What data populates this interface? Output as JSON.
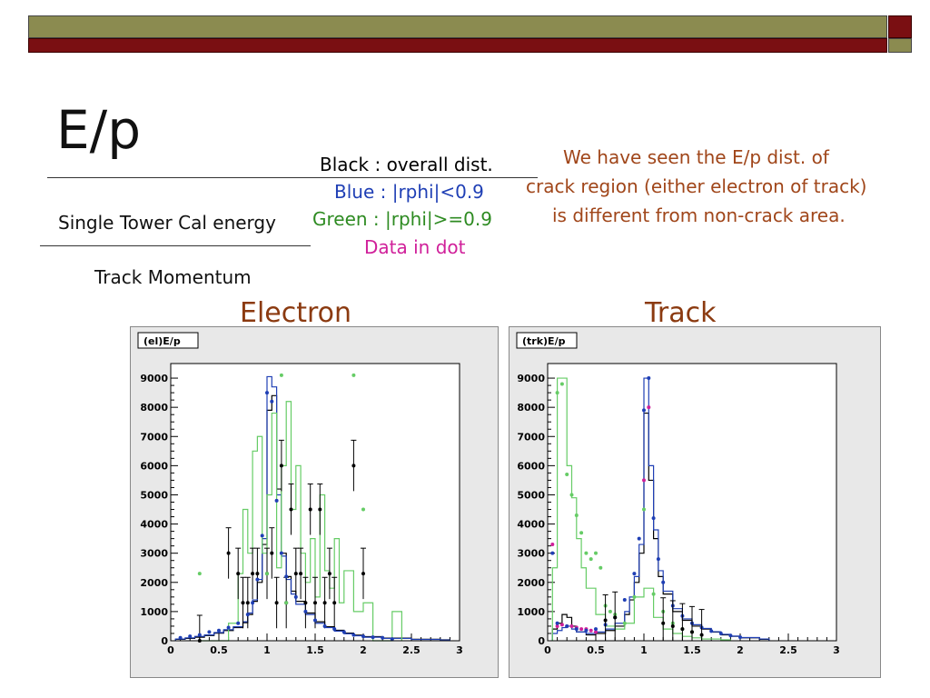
{
  "slide": {
    "title": "E/p",
    "numerator_label": "Single Tower Cal energy",
    "denominator_label": "Track Momentum",
    "legend": [
      {
        "text": "Black : overall dist.",
        "color": "#000000"
      },
      {
        "text": "Blue : |rphi|<0.9",
        "color": "#1f3fb5"
      },
      {
        "text": "Green : |rphi|>=0.9",
        "color": "#2e8b22"
      },
      {
        "text": "Data in dot",
        "color": "#d0209a"
      }
    ],
    "note_lines": [
      "We have seen the E/p dist. of",
      "crack region (either electron of track)",
      "is different from non-crack area."
    ],
    "note_color": "#a0461a",
    "colors": {
      "band_olive": "#8b8b50",
      "band_red": "#7a0f12",
      "plot_title": "#8b3a10"
    }
  },
  "chart_data": [
    {
      "type": "line",
      "heading": "Electron",
      "title": "(el)E/p",
      "xlim": [
        0,
        3
      ],
      "ylim": [
        0,
        9500
      ],
      "xticks": [
        0,
        0.5,
        1,
        1.5,
        2,
        2.5,
        3
      ],
      "yticks": [
        0,
        1000,
        2000,
        3000,
        4000,
        5000,
        6000,
        7000,
        8000,
        9000
      ],
      "series": [
        {
          "name": "Black : overall dist.",
          "style": "hist",
          "color": "#000000",
          "x": [
            0.05,
            0.15,
            0.25,
            0.35,
            0.45,
            0.55,
            0.65,
            0.75,
            0.8,
            0.85,
            0.9,
            0.95,
            1.0,
            1.05,
            1.1,
            1.15,
            1.2,
            1.25,
            1.3,
            1.4,
            1.5,
            1.6,
            1.7,
            1.8,
            1.9,
            2.0,
            2.2,
            2.5,
            2.8
          ],
          "y": [
            50,
            80,
            120,
            180,
            260,
            350,
            450,
            620,
            900,
            1350,
            2000,
            3300,
            7900,
            8400,
            5200,
            3000,
            2200,
            1700,
            1350,
            950,
            650,
            480,
            360,
            260,
            190,
            140,
            90,
            50,
            30
          ]
        },
        {
          "name": "Blue : |rphi|<0.9",
          "style": "hist",
          "color": "#1f3fb5",
          "x": [
            0.05,
            0.15,
            0.25,
            0.35,
            0.45,
            0.55,
            0.65,
            0.75,
            0.8,
            0.85,
            0.9,
            0.95,
            1.0,
            1.05,
            1.1,
            1.15,
            1.2,
            1.25,
            1.3,
            1.4,
            1.5,
            1.6,
            1.7,
            1.8,
            1.9,
            2.0,
            2.2,
            2.5,
            2.8
          ],
          "y": [
            60,
            100,
            150,
            200,
            280,
            380,
            480,
            650,
            950,
            1400,
            2100,
            3500,
            9050,
            8700,
            5000,
            2900,
            2100,
            1600,
            1250,
            900,
            600,
            450,
            330,
            240,
            170,
            120,
            80,
            45,
            25
          ]
        },
        {
          "name": "Green : |rphi|>=0.9",
          "style": "hist",
          "color": "#66cc66",
          "x": [
            0.3,
            0.45,
            0.6,
            0.7,
            0.75,
            0.8,
            0.85,
            0.9,
            0.95,
            1.0,
            1.05,
            1.1,
            1.15,
            1.2,
            1.25,
            1.3,
            1.35,
            1.4,
            1.45,
            1.5,
            1.55,
            1.6,
            1.65,
            1.7,
            1.75,
            1.8,
            1.9,
            2.0,
            2.1,
            2.3
          ],
          "y": [
            0,
            0,
            600,
            2300,
            4500,
            3000,
            6500,
            7000,
            3000,
            5000,
            7800,
            2500,
            6000,
            8200,
            4500,
            6000,
            3000,
            2000,
            3500,
            1500,
            5000,
            2400,
            1800,
            3500,
            1300,
            2400,
            1000,
            1300,
            0,
            1000
          ]
        },
        {
          "name": "Black data",
          "style": "points",
          "color": "#000000",
          "x": [
            0.3,
            0.6,
            0.7,
            0.75,
            0.8,
            0.85,
            0.9,
            1.0,
            1.05,
            1.1,
            1.15,
            1.2,
            1.25,
            1.3,
            1.35,
            1.4,
            1.45,
            1.5,
            1.55,
            1.6,
            1.65,
            1.7,
            1.9,
            2.0
          ],
          "y": [
            0,
            3000,
            2300,
            1300,
            1300,
            2300,
            2300,
            2300,
            3000,
            1300,
            6000,
            1300,
            4500,
            2300,
            2300,
            1300,
            4500,
            1300,
            4500,
            1300,
            2300,
            1300,
            6000,
            2300
          ]
        },
        {
          "name": "Blue data",
          "style": "points",
          "color": "#1f3fb5",
          "x": [
            0.1,
            0.2,
            0.3,
            0.4,
            0.5,
            0.6,
            0.7,
            0.8,
            0.85,
            0.9,
            0.95,
            1.0,
            1.05,
            1.1,
            1.15,
            1.2,
            1.3,
            1.4,
            1.5,
            1.6,
            1.7,
            1.8,
            1.9,
            2.0,
            2.1,
            2.2,
            2.3
          ],
          "y": [
            100,
            150,
            200,
            300,
            350,
            450,
            600,
            900,
            1300,
            2100,
            3600,
            8500,
            8200,
            4800,
            3000,
            2200,
            1500,
            1000,
            700,
            500,
            400,
            300,
            200,
            150,
            120,
            100,
            60
          ]
        },
        {
          "name": "Green data",
          "style": "points",
          "color": "#66cc66",
          "x": [
            0.3,
            1.0,
            1.15,
            1.2,
            1.9,
            2.0
          ],
          "y": [
            2300,
            2300,
            9100,
            1300,
            9100,
            4500
          ]
        }
      ]
    },
    {
      "type": "line",
      "heading": "Track",
      "title": "(trk)E/p",
      "xlim": [
        0,
        3
      ],
      "ylim": [
        0,
        9500
      ],
      "xticks": [
        0,
        0.5,
        1,
        1.5,
        2,
        2.5,
        3
      ],
      "yticks": [
        0,
        1000,
        2000,
        3000,
        4000,
        5000,
        6000,
        7000,
        8000,
        9000
      ],
      "series": [
        {
          "name": "Black : overall dist.",
          "style": "hist",
          "color": "#000000",
          "x": [
            0.05,
            0.1,
            0.15,
            0.2,
            0.25,
            0.3,
            0.4,
            0.5,
            0.6,
            0.7,
            0.8,
            0.85,
            0.9,
            0.95,
            1.0,
            1.05,
            1.1,
            1.15,
            1.2,
            1.3,
            1.4,
            1.5,
            1.6,
            1.7,
            1.8,
            1.9,
            2.0,
            2.2
          ],
          "y": [
            400,
            600,
            900,
            800,
            500,
            300,
            200,
            250,
            350,
            500,
            900,
            1400,
            2000,
            3000,
            7800,
            5500,
            3500,
            2200,
            1600,
            1000,
            700,
            500,
            400,
            300,
            200,
            150,
            100,
            50
          ]
        },
        {
          "name": "Blue : |rphi|<0.9",
          "style": "hist",
          "color": "#1f3fb5",
          "x": [
            0.05,
            0.1,
            0.15,
            0.2,
            0.25,
            0.3,
            0.4,
            0.5,
            0.6,
            0.7,
            0.8,
            0.85,
            0.9,
            0.95,
            1.0,
            1.05,
            1.1,
            1.15,
            1.2,
            1.3,
            1.4,
            1.5,
            1.6,
            1.7,
            1.8,
            1.9,
            2.0,
            2.2
          ],
          "y": [
            250,
            350,
            450,
            500,
            400,
            300,
            250,
            300,
            400,
            600,
            1000,
            1500,
            2200,
            3300,
            9000,
            6000,
            3800,
            2400,
            1700,
            1100,
            750,
            550,
            420,
            310,
            220,
            160,
            110,
            60
          ]
        },
        {
          "name": "Green : |rphi|>=0.9",
          "style": "hist",
          "color": "#66cc66",
          "x": [
            0.05,
            0.1,
            0.15,
            0.2,
            0.25,
            0.3,
            0.35,
            0.4,
            0.5,
            0.6,
            0.7,
            0.8,
            0.9,
            1.0,
            1.1,
            1.2,
            1.3,
            1.4,
            1.5,
            1.6,
            1.8
          ],
          "y": [
            2500,
            9000,
            9000,
            6000,
            4900,
            3500,
            2500,
            1800,
            900,
            500,
            400,
            600,
            1500,
            1800,
            800,
            400,
            250,
            150,
            100,
            60,
            30
          ]
        },
        {
          "name": "Data in dot",
          "style": "points",
          "color": "#d0209a",
          "x": [
            0.05,
            0.1,
            0.15,
            0.2,
            0.25,
            0.3,
            0.35,
            0.4,
            0.45,
            0.5,
            1.0,
            1.05
          ],
          "y": [
            3300,
            500,
            550,
            500,
            500,
            450,
            400,
            400,
            350,
            300,
            5500,
            8000
          ]
        },
        {
          "name": "Blue data",
          "style": "points",
          "color": "#1f3fb5",
          "x": [
            0.05,
            0.1,
            0.2,
            0.3,
            0.4,
            0.5,
            0.6,
            0.7,
            0.8,
            0.9,
            0.95,
            1.0,
            1.05,
            1.1,
            1.15,
            1.2,
            1.3,
            1.4,
            1.5,
            1.6,
            1.7,
            1.8,
            1.9,
            2.0
          ],
          "y": [
            3000,
            600,
            500,
            400,
            350,
            400,
            550,
            800,
            1400,
            2300,
            3500,
            7900,
            9000,
            4200,
            2800,
            2000,
            1200,
            850,
            600,
            450,
            330,
            250,
            180,
            120
          ]
        },
        {
          "name": "Green data",
          "style": "points",
          "color": "#66cc66",
          "x": [
            0.1,
            0.15,
            0.2,
            0.25,
            0.3,
            0.35,
            0.4,
            0.45,
            0.5,
            0.55,
            0.6,
            0.65,
            0.7,
            0.8,
            0.9,
            1.0,
            1.1,
            1.2,
            1.3,
            1.4,
            1.5
          ],
          "y": [
            8500,
            8800,
            5700,
            5000,
            4300,
            3700,
            3000,
            2800,
            3000,
            2500,
            1200,
            1000,
            900,
            600,
            1500,
            4500,
            1600,
            1000,
            600,
            400,
            300
          ]
        },
        {
          "name": "Black data",
          "style": "points",
          "color": "#000000",
          "x": [
            0.6,
            0.7,
            1.2,
            1.3,
            1.4,
            1.5,
            1.6
          ],
          "y": [
            700,
            800,
            600,
            500,
            400,
            300,
            200
          ]
        }
      ]
    }
  ]
}
